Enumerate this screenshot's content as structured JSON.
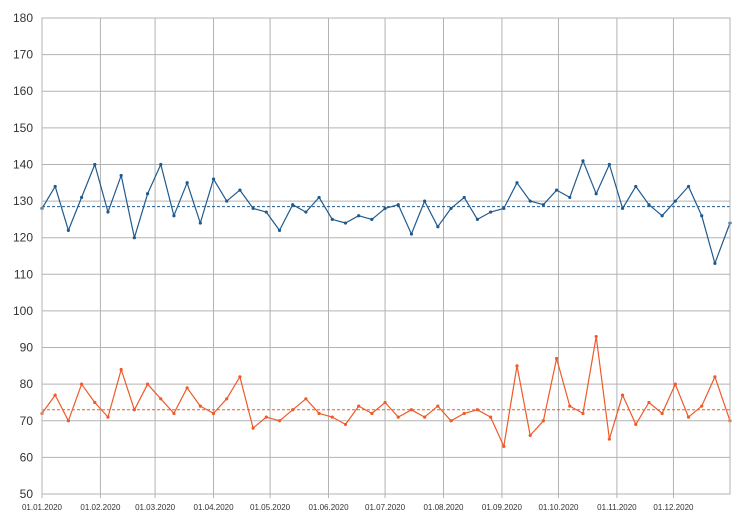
{
  "chart_data": {
    "type": "line",
    "x_type": "date",
    "xlim": [
      "01.01.2020",
      "31.12.2020"
    ],
    "x_ticks": [
      "01.01.2020",
      "01.02.2020",
      "01.03.2020",
      "01.04.2020",
      "01.05.2020",
      "01.06.2020",
      "01.07.2020",
      "01.08.2020",
      "01.09.2020",
      "01.10.2020",
      "01.11.2020",
      "01.12.2020"
    ],
    "ylim": [
      50,
      180
    ],
    "y_ticks": [
      50,
      60,
      70,
      80,
      90,
      100,
      110,
      120,
      130,
      140,
      150,
      160,
      170,
      180
    ],
    "grid": true,
    "legend": "none",
    "title": "",
    "xlabel": "",
    "ylabel": "",
    "series": [
      {
        "color": "#1f5a8f",
        "marker": "dot",
        "mean_line": 128.5,
        "dates": [
          "01.01.2020",
          "08.01.2020",
          "15.01.2020",
          "22.01.2020",
          "29.01.2020",
          "05.02.2020",
          "12.02.2020",
          "19.02.2020",
          "26.02.2020",
          "04.03.2020",
          "11.03.2020",
          "18.03.2020",
          "25.03.2020",
          "01.04.2020",
          "08.04.2020",
          "15.04.2020",
          "22.04.2020",
          "29.04.2020",
          "06.05.2020",
          "13.05.2020",
          "20.05.2020",
          "27.05.2020",
          "03.06.2020",
          "10.06.2020",
          "17.06.2020",
          "24.06.2020",
          "01.07.2020",
          "08.07.2020",
          "15.07.2020",
          "22.07.2020",
          "29.07.2020",
          "05.08.2020",
          "12.08.2020",
          "19.08.2020",
          "26.08.2020",
          "02.09.2020",
          "09.09.2020",
          "16.09.2020",
          "23.09.2020",
          "30.09.2020",
          "07.10.2020",
          "14.10.2020",
          "21.10.2020",
          "28.10.2020",
          "04.11.2020",
          "11.11.2020",
          "18.11.2020",
          "25.11.2020",
          "02.12.2020",
          "09.12.2020",
          "16.12.2020",
          "23.12.2020",
          "31.12.2020"
        ],
        "values": [
          128,
          134,
          122,
          131,
          140,
          127,
          137,
          120,
          132,
          140,
          126,
          135,
          124,
          136,
          130,
          133,
          128,
          127,
          122,
          129,
          127,
          131,
          125,
          124,
          126,
          125,
          128,
          129,
          121,
          130,
          123,
          128,
          131,
          125,
          127,
          128,
          135,
          130,
          129,
          133,
          131,
          141,
          132,
          140,
          128,
          134,
          129,
          126,
          130,
          134,
          126,
          113,
          124
        ]
      },
      {
        "color": "#f05a28",
        "marker": "dot",
        "mean_line": 73,
        "dates": [
          "01.01.2020",
          "08.01.2020",
          "15.01.2020",
          "22.01.2020",
          "29.01.2020",
          "05.02.2020",
          "12.02.2020",
          "19.02.2020",
          "26.02.2020",
          "04.03.2020",
          "11.03.2020",
          "18.03.2020",
          "25.03.2020",
          "01.04.2020",
          "08.04.2020",
          "15.04.2020",
          "22.04.2020",
          "29.04.2020",
          "06.05.2020",
          "13.05.2020",
          "20.05.2020",
          "27.05.2020",
          "03.06.2020",
          "10.06.2020",
          "17.06.2020",
          "24.06.2020",
          "01.07.2020",
          "08.07.2020",
          "15.07.2020",
          "22.07.2020",
          "29.07.2020",
          "05.08.2020",
          "12.08.2020",
          "19.08.2020",
          "26.08.2020",
          "02.09.2020",
          "09.09.2020",
          "16.09.2020",
          "23.09.2020",
          "30.09.2020",
          "07.10.2020",
          "14.10.2020",
          "21.10.2020",
          "28.10.2020",
          "04.11.2020",
          "11.11.2020",
          "18.11.2020",
          "25.11.2020",
          "02.12.2020",
          "09.12.2020",
          "16.12.2020",
          "23.12.2020",
          "31.12.2020"
        ],
        "values": [
          72,
          77,
          70,
          80,
          75,
          71,
          84,
          73,
          80,
          76,
          72,
          79,
          74,
          72,
          76,
          82,
          68,
          71,
          70,
          73,
          76,
          72,
          71,
          69,
          74,
          72,
          75,
          71,
          73,
          71,
          74,
          70,
          72,
          73,
          71,
          63,
          85,
          66,
          70,
          87,
          74,
          72,
          93,
          65,
          77,
          69,
          75,
          72,
          80,
          71,
          74,
          82,
          70
        ]
      }
    ]
  }
}
